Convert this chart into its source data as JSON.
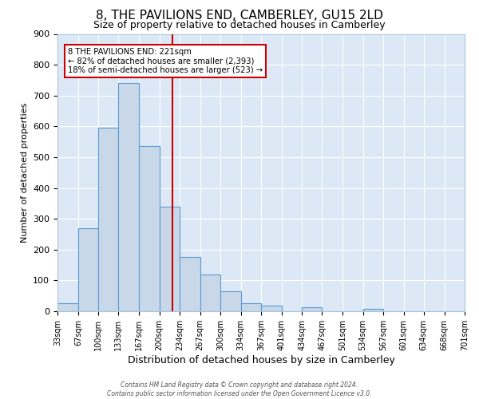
{
  "title": "8, THE PAVILIONS END, CAMBERLEY, GU15 2LD",
  "subtitle": "Size of property relative to detached houses in Camberley",
  "xlabel": "Distribution of detached houses by size in Camberley",
  "ylabel": "Number of detached properties",
  "bin_edges": [
    33,
    67,
    100,
    133,
    167,
    200,
    234,
    267,
    300,
    334,
    367,
    401,
    434,
    467,
    501,
    534,
    567,
    601,
    634,
    668,
    701
  ],
  "bar_heights": [
    27,
    270,
    595,
    740,
    535,
    338,
    175,
    120,
    65,
    25,
    18,
    0,
    12,
    0,
    0,
    8,
    0,
    0,
    0,
    0
  ],
  "bar_color": "#c8d8e8",
  "bar_edge_color": "#5b9bd5",
  "ref_line_x": 221,
  "ref_line_color": "#cc0000",
  "annotation_title": "8 THE PAVILIONS END: 221sqm",
  "annotation_line1": "← 82% of detached houses are smaller (2,393)",
  "annotation_line2": "18% of semi-detached houses are larger (523) →",
  "annotation_box_color": "#cc0000",
  "ylim": [
    0,
    900
  ],
  "yticks": [
    0,
    100,
    200,
    300,
    400,
    500,
    600,
    700,
    800,
    900
  ],
  "bg_color": "#dce8f5",
  "fig_bg_color": "#ffffff",
  "footer1": "Contains HM Land Registry data © Crown copyright and database right 2024.",
  "footer2": "Contains public sector information licensed under the Open Government Licence v3.0."
}
